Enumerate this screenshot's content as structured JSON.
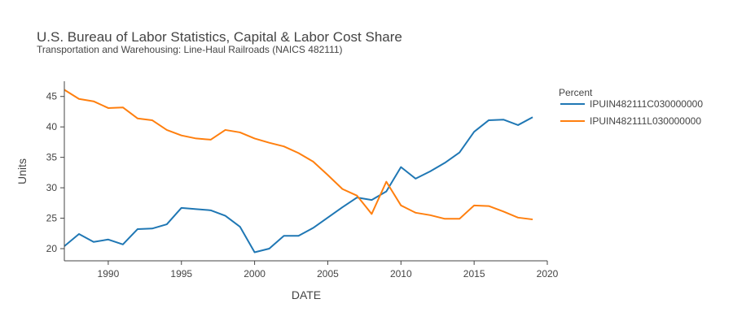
{
  "chart_data": {
    "type": "line",
    "title": "U.S. Bureau of Labor Statistics, Capital & Labor Cost Share",
    "subtitle": "Transportation and Warehousing: Line-Haul Railroads (NAICS 482111)",
    "xlabel": "DATE",
    "ylabel": "Units",
    "xlim": [
      1987,
      2020
    ],
    "ylim": [
      18,
      47.5
    ],
    "x_ticks": [
      1990,
      1995,
      2000,
      2005,
      2010,
      2015,
      2020
    ],
    "y_ticks": [
      20,
      25,
      30,
      35,
      40,
      45
    ],
    "grid": false,
    "legend_title": "Percent",
    "legend_position": "top-right",
    "x": [
      1987,
      1988,
      1989,
      1990,
      1991,
      1992,
      1993,
      1994,
      1995,
      1996,
      1997,
      1998,
      1999,
      2000,
      2001,
      2002,
      2003,
      2004,
      2005,
      2006,
      2007,
      2008,
      2009,
      2010,
      2011,
      2012,
      2013,
      2014,
      2015,
      2016,
      2017,
      2018,
      2019
    ],
    "series": [
      {
        "name": "IPUIN482111C030000000",
        "color": "#1f77b4",
        "values": [
          20.4,
          22.4,
          21.1,
          21.5,
          20.7,
          23.2,
          23.3,
          24.0,
          26.7,
          26.5,
          26.3,
          25.4,
          23.6,
          19.4,
          20.0,
          22.1,
          22.1,
          23.4,
          25.1,
          26.8,
          28.4,
          28.0,
          29.4,
          33.4,
          31.5,
          32.7,
          34.1,
          35.8,
          39.2,
          41.1,
          41.2,
          40.3,
          41.6
        ]
      },
      {
        "name": "IPUIN482111L030000000",
        "color": "#ff7f0e",
        "values": [
          46.1,
          44.6,
          44.2,
          43.1,
          43.2,
          41.4,
          41.1,
          39.5,
          38.6,
          38.1,
          37.9,
          39.5,
          39.1,
          38.1,
          37.4,
          36.8,
          35.7,
          34.3,
          32.1,
          29.8,
          28.7,
          25.7,
          31.0,
          27.1,
          25.9,
          25.5,
          24.9,
          24.9,
          27.1,
          27.0,
          26.1,
          25.1,
          24.8
        ]
      }
    ]
  }
}
